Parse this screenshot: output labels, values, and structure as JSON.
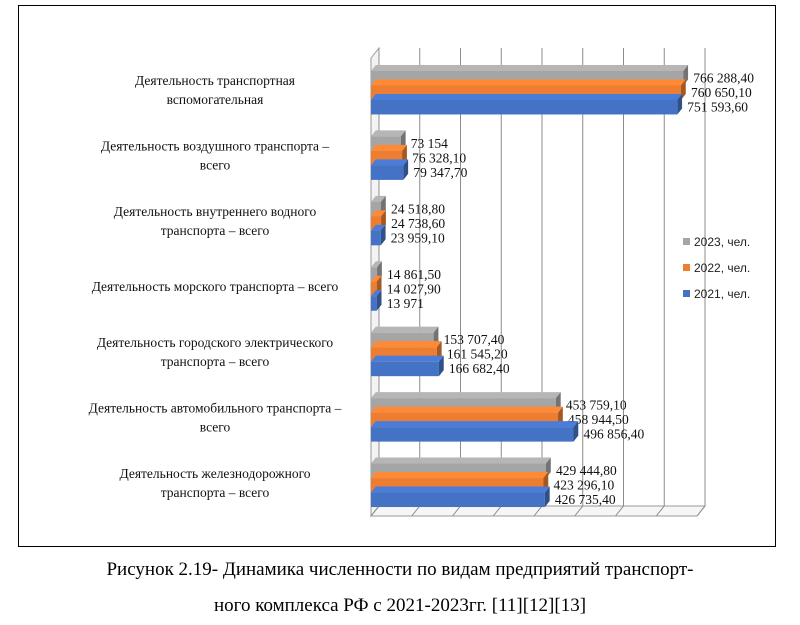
{
  "chart_data": {
    "type": "bar",
    "orientation": "horizontal",
    "three_d": true,
    "categories": [
      [
        "Деятельность транспортная",
        "вспомогательная"
      ],
      [
        "Деятельность воздушного транспорта –",
        "всего"
      ],
      [
        "Деятельность внутреннего водного",
        "транспорта – всего"
      ],
      [
        "Деятельность морского транспорта – всего"
      ],
      [
        "Деятельность городского электрического",
        "транспорта – всего"
      ],
      [
        "Деятельность автомобильного транспорта –",
        "всего"
      ],
      [
        "Деятельность железнодорожного",
        "транспорта – всего"
      ]
    ],
    "series": [
      {
        "name": "2023, чел.",
        "color": "#a5a5a5",
        "values": [
          766288.4,
          73154,
          24518.8,
          14861.5,
          153707.4,
          453759.1,
          429444.8
        ],
        "labels": [
          "766 288,40",
          "73 154",
          "24 518,80",
          "14 861,50",
          "153 707,40",
          "453 759,10",
          "429 444,80"
        ]
      },
      {
        "name": "2022, чел.",
        "color": "#ed7d31",
        "values": [
          760650.1,
          76328.1,
          24738.6,
          14027.9,
          161545.2,
          458944.5,
          423296.1
        ],
        "labels": [
          "760 650,10",
          "76 328,10",
          "24 738,60",
          "14 027,90",
          "161 545,20",
          "458 944,50",
          "423 296,10"
        ]
      },
      {
        "name": "2021, чел.",
        "color": "#4472c4",
        "values": [
          751593.6,
          79347.7,
          23959.1,
          13971,
          166682.4,
          496856.4,
          426735.4
        ],
        "labels": [
          "751 593,60",
          "79 347,70",
          "23 959,10",
          "13 971",
          "166 682,40",
          "496 856,40",
          "426 735,40"
        ]
      }
    ],
    "xlim": [
      0,
      800000
    ],
    "grid": "vertical",
    "legend_position": "right"
  },
  "caption": {
    "line1": "Рисунок 2.19- Динамика численности по видам предприятий транспорт-",
    "line2": "ного комплекса РФ с 2021-2023гг. [11][12][13]"
  }
}
